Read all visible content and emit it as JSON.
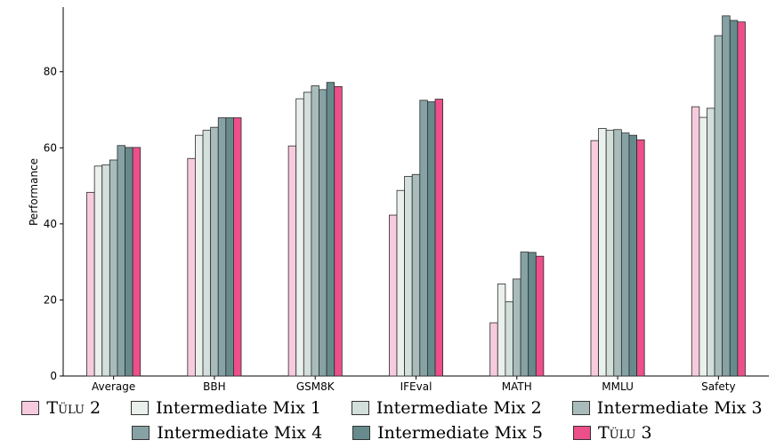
{
  "chart_data": {
    "type": "bar",
    "ylabel": "Performance",
    "xlabel": "",
    "ylim": [
      0,
      97
    ],
    "yticks": [
      0,
      20,
      40,
      60,
      80
    ],
    "categories": [
      "Average",
      "BBH",
      "GSM8K",
      "IFEval",
      "MATH",
      "MMLU",
      "Safety"
    ],
    "series": [
      {
        "name": "TÜLU 2",
        "color": "#f7cbdd",
        "values": [
          48.3,
          57.2,
          60.5,
          42.3,
          14.0,
          61.9,
          70.8
        ]
      },
      {
        "name": "Intermediate Mix 1",
        "color": "#eaf0ec",
        "values": [
          55.2,
          63.3,
          72.9,
          48.8,
          24.2,
          65.1,
          68.0
        ]
      },
      {
        "name": "Intermediate Mix 2",
        "color": "#d3dfdb",
        "values": [
          55.5,
          64.6,
          74.6,
          52.5,
          19.5,
          64.6,
          70.4
        ]
      },
      {
        "name": "Intermediate Mix 3",
        "color": "#a8bdbb",
        "values": [
          56.8,
          65.4,
          76.3,
          53.0,
          25.5,
          64.8,
          89.5
        ]
      },
      {
        "name": "Intermediate Mix 4",
        "color": "#87a2a4",
        "values": [
          60.6,
          67.9,
          75.3,
          72.5,
          32.6,
          63.9,
          94.7
        ]
      },
      {
        "name": "Intermediate Mix 5",
        "color": "#678b8c",
        "values": [
          60.1,
          67.9,
          77.2,
          72.1,
          32.5,
          63.3,
          93.5
        ]
      },
      {
        "name": "TÜLU 3",
        "color": "#ec4f8a",
        "values": [
          60.1,
          67.9,
          76.1,
          72.8,
          31.5,
          62.1,
          93.1
        ]
      }
    ]
  },
  "legend": [
    {
      "prefix": "T",
      "sc": "ülu",
      "suffix": " 2"
    },
    {
      "prefix": "Intermediate Mix 1",
      "sc": "",
      "suffix": ""
    },
    {
      "prefix": "Intermediate Mix 2",
      "sc": "",
      "suffix": ""
    },
    {
      "prefix": "Intermediate Mix 3",
      "sc": "",
      "suffix": ""
    },
    {
      "prefix": "Intermediate Mix 4",
      "sc": "",
      "suffix": ""
    },
    {
      "prefix": "Intermediate Mix 5",
      "sc": "",
      "suffix": ""
    },
    {
      "prefix": "T",
      "sc": "ülu",
      "suffix": " 3"
    }
  ]
}
